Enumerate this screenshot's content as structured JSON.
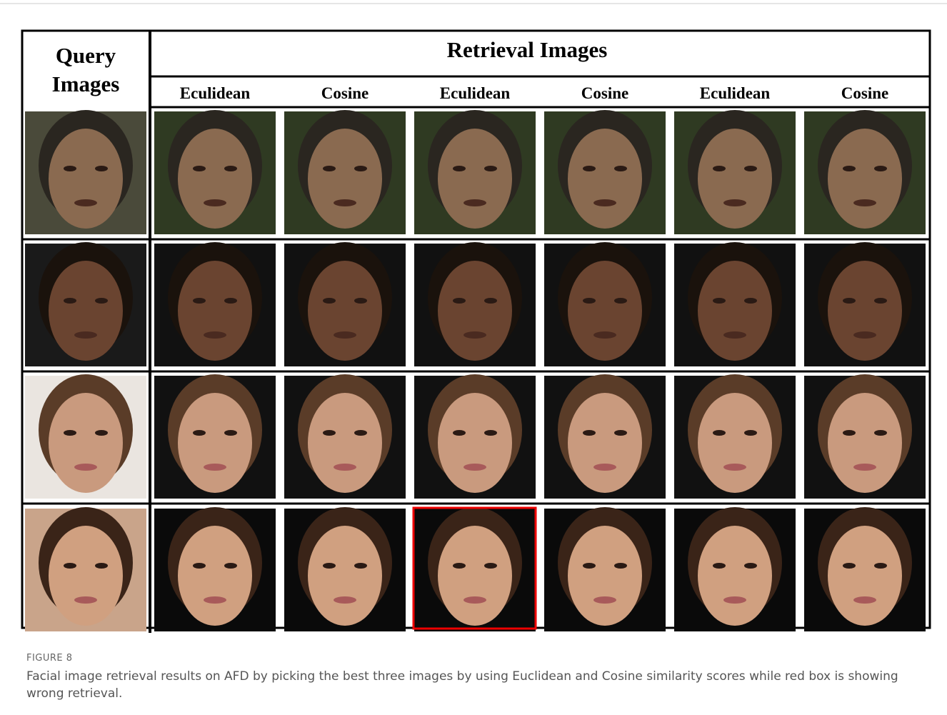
{
  "figure": {
    "query_label": "Query Images",
    "retrieval_label": "Retrieval Images",
    "metrics": [
      "Eculidean",
      "Cosine",
      "Eculidean",
      "Cosine",
      "Eculidean",
      "Cosine"
    ],
    "caption": {
      "label": "FIGURE 8",
      "text": "Facial image retrieval results on AFD by picking the best three images by using Euclidean and Cosine similarity scores while red box is showing wrong retrieval."
    }
  }
}
